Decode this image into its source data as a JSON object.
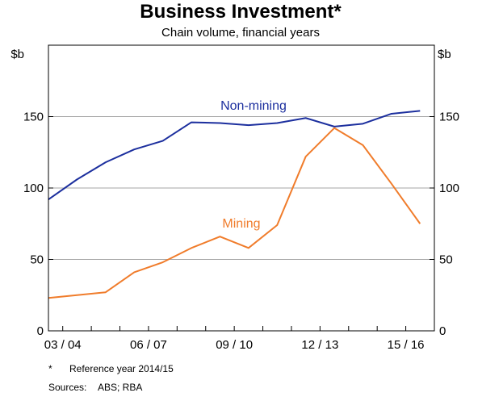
{
  "chart_data": {
    "type": "line",
    "title": "Business Investment*",
    "subtitle": "Chain volume, financial years",
    "y_unit_left": "$b",
    "y_unit_right": "$b",
    "ylim": [
      0,
      200
    ],
    "yticks": [
      0,
      50,
      100,
      150
    ],
    "x_tick_labels": [
      "03 / 04",
      "06 / 07",
      "09 / 10",
      "12 / 13",
      "15 / 16"
    ],
    "x_tick_positions": [
      2004,
      2007,
      2010,
      2013,
      2016
    ],
    "xlim": [
      2003.0,
      2016.5
    ],
    "grid": true,
    "series": [
      {
        "name": "Non-mining",
        "color": "#1c2f9e",
        "x": [
          2003,
          2004,
          2005,
          2006,
          2007,
          2008,
          2009,
          2010,
          2011,
          2012,
          2013,
          2014,
          2015,
          2016
        ],
        "values": [
          92,
          106,
          118,
          127,
          133,
          146,
          145.5,
          144,
          145.5,
          149,
          143,
          145,
          152,
          154
        ]
      },
      {
        "name": "Mining",
        "color": "#f07c2b",
        "x": [
          2003,
          2004,
          2005,
          2006,
          2007,
          2008,
          2009,
          2010,
          2011,
          2012,
          2013,
          2014,
          2015,
          2016
        ],
        "values": [
          23,
          25,
          27,
          41,
          48,
          58,
          66,
          58,
          74,
          122,
          142,
          130,
          103,
          75
        ]
      }
    ]
  },
  "footnotes": {
    "asterisk": "*",
    "reference": "Reference year 2014/15",
    "sources_label": "Sources:",
    "sources_value": "ABS; RBA"
  }
}
